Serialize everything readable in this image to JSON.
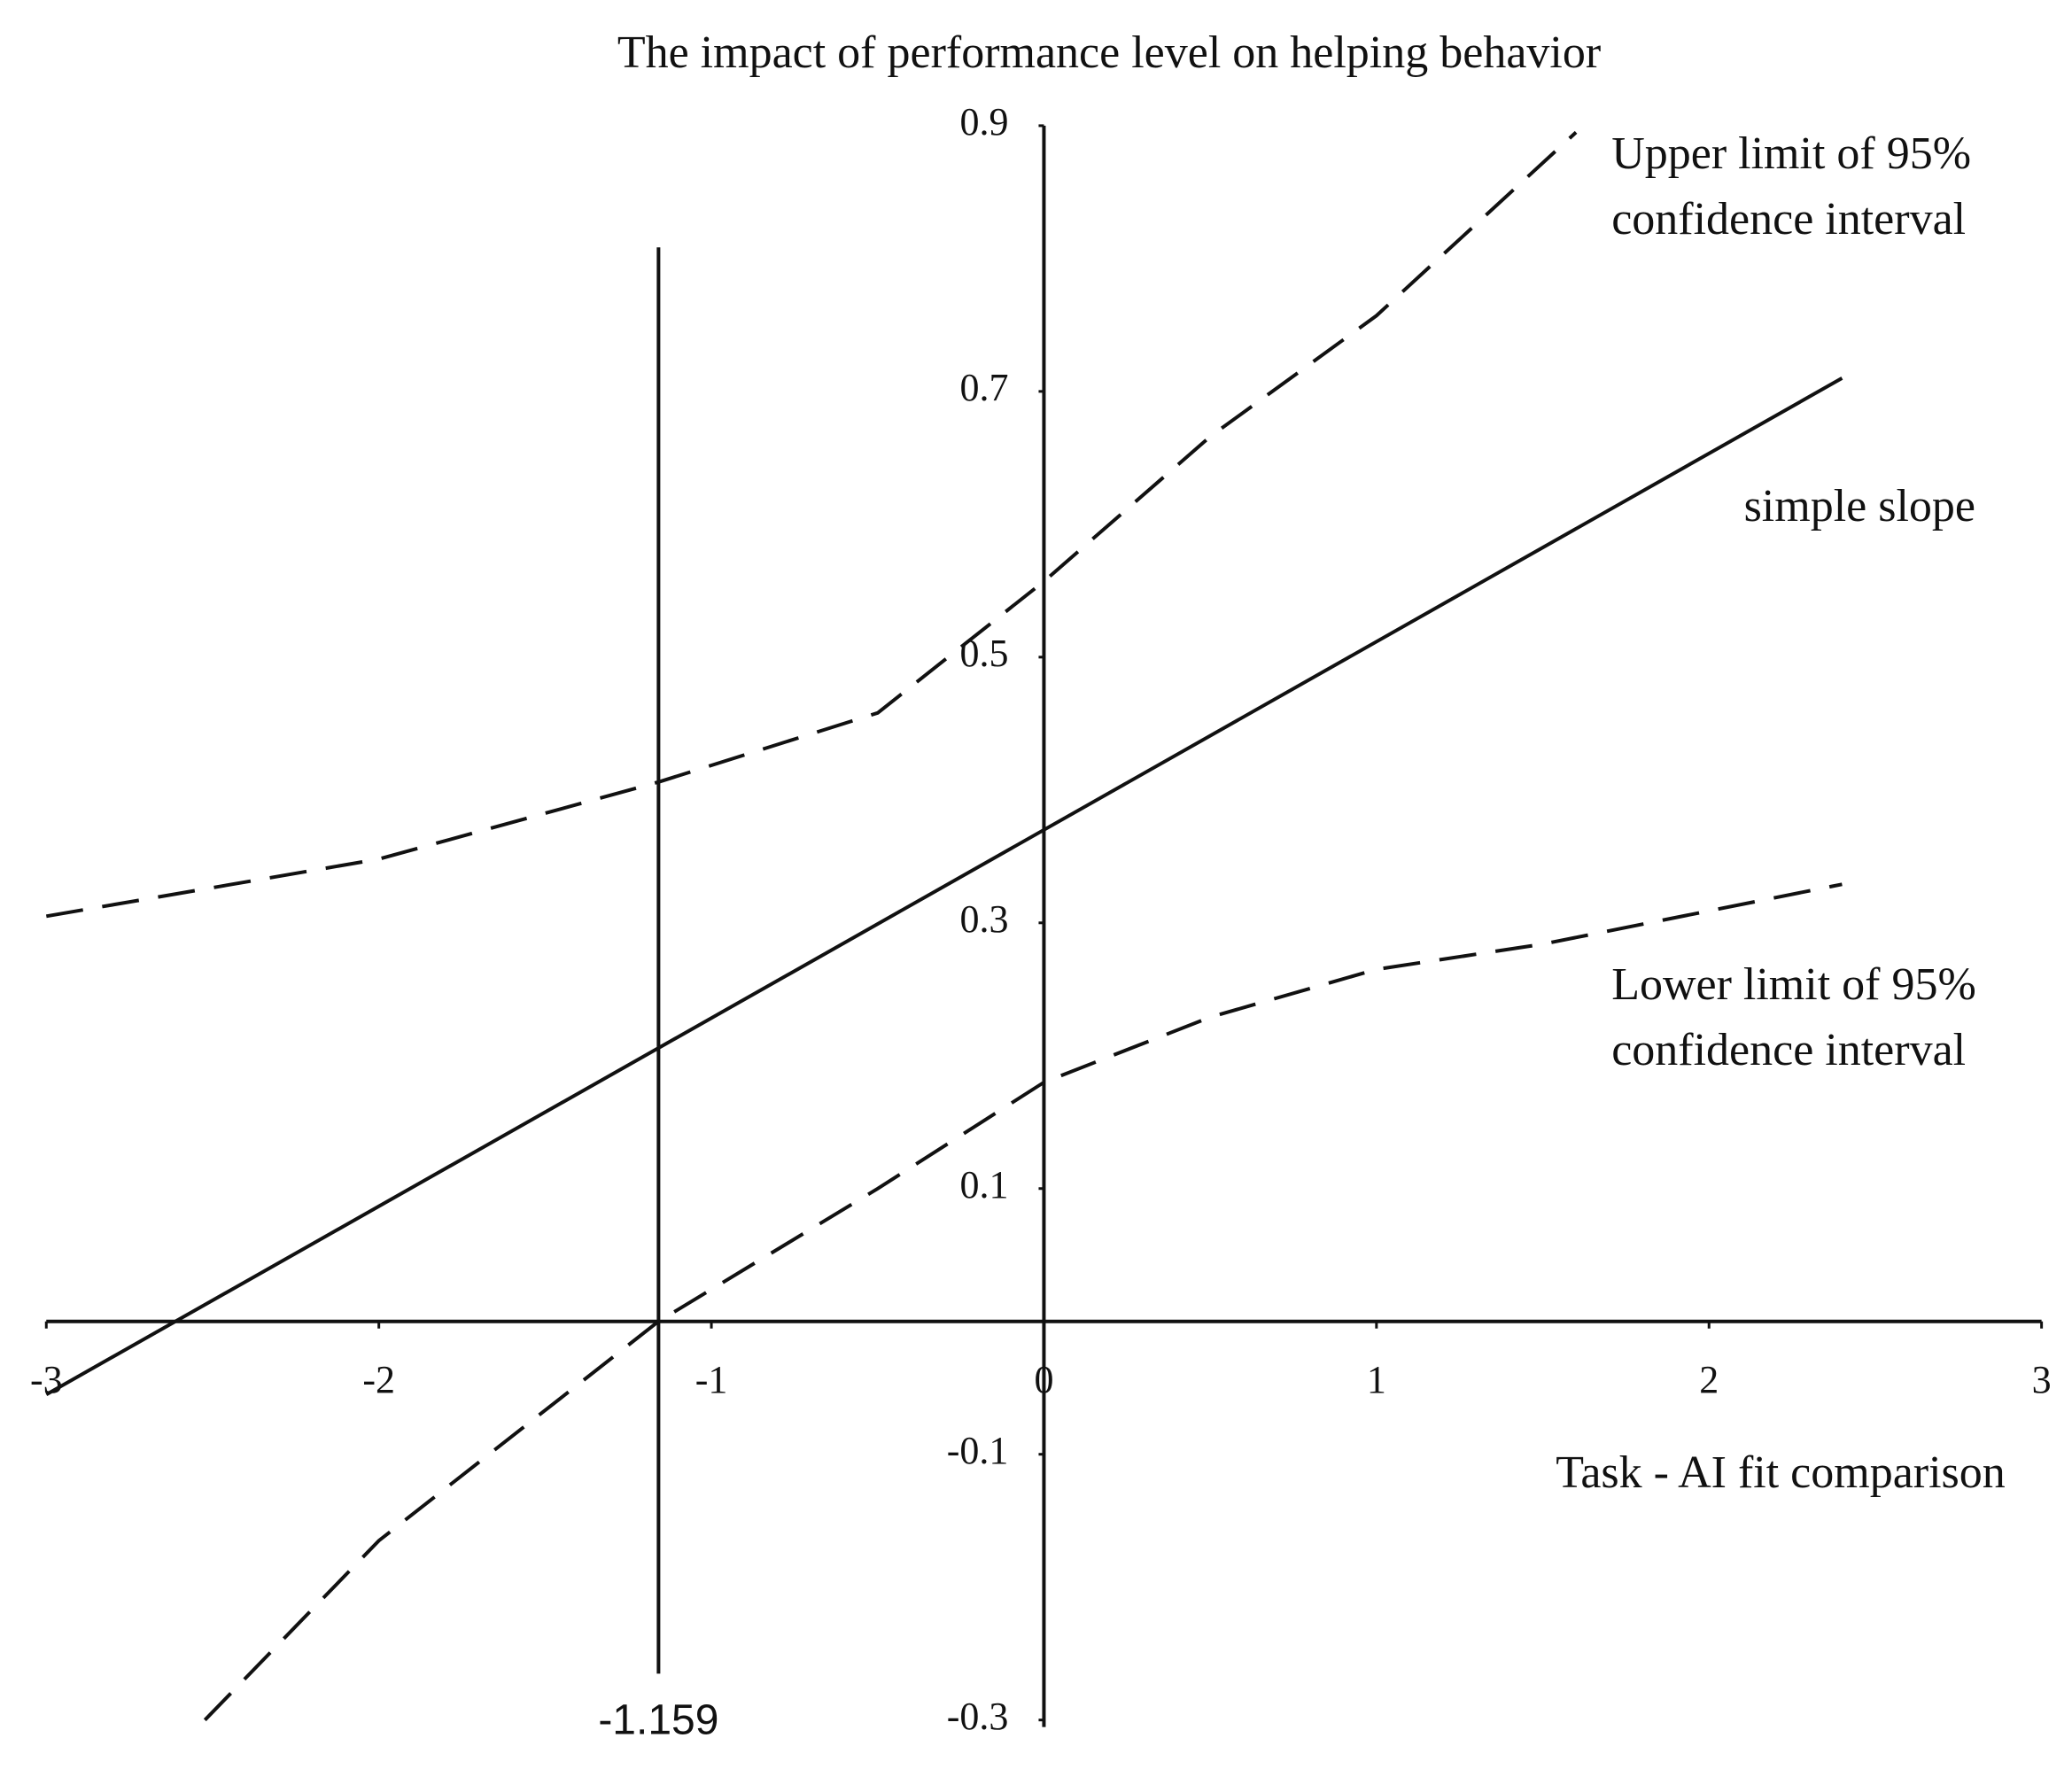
{
  "chart_data": {
    "type": "line",
    "title": "The impact of performance level on helping behavior",
    "x_label": "Task - AI fit comparison",
    "xlim": [
      -3,
      3
    ],
    "xticks": [
      -3,
      -2,
      -1,
      0,
      1,
      2,
      3
    ],
    "ylim": [
      -0.3,
      0.9
    ],
    "yticks": [
      0.9,
      0.7,
      0.5,
      0.3,
      0.1,
      -0.1,
      -0.3
    ],
    "annotation_x": -1.159,
    "series": [
      {
        "name": "Upper limit of 95% confidence interval",
        "color": "#111111",
        "dashed": true,
        "x": [
          -3,
          -2,
          -1.159,
          -0.5,
          0,
          0.5,
          1,
          1.6
        ],
        "values": [
          0.305,
          0.348,
          0.406,
          0.458,
          0.557,
          0.666,
          0.757,
          0.895
        ]
      },
      {
        "name": "simple slope",
        "color": "#111111",
        "dashed": false,
        "x": [
          -3,
          2.4
        ],
        "values": [
          -0.055,
          0.71
        ]
      },
      {
        "name": "Lower limit of 95% confidence interval",
        "color": "#111111",
        "dashed": true,
        "x": [
          -2.523,
          -2,
          -1.159,
          -0.5,
          0,
          0.5,
          1,
          1.5,
          2.4
        ],
        "values": [
          -0.3,
          -0.165,
          0,
          0.1,
          0.18,
          0.229,
          0.265,
          0.284,
          0.329
        ]
      }
    ]
  }
}
